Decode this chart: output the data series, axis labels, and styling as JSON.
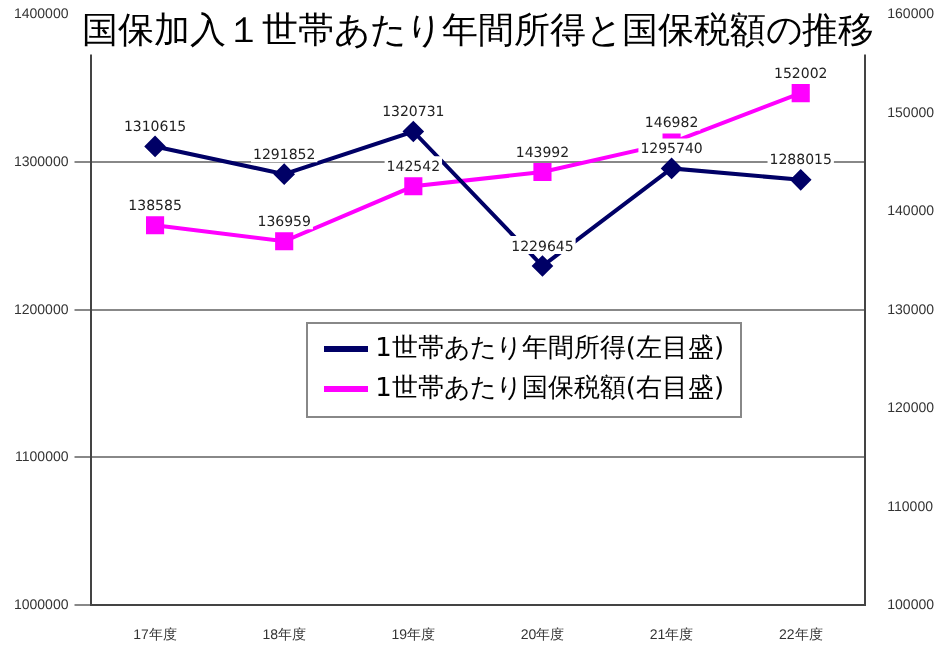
{
  "chart_data": {
    "type": "line",
    "title": "国保加入１世帯あたり年間所得と国保税額の推移",
    "categories": [
      "17年度",
      "18年度",
      "19年度",
      "20年度",
      "21年度",
      "22年度"
    ],
    "series": [
      {
        "name": "1世帯あたり年間所得(左目盛)",
        "color": "#000066",
        "marker": "diamond",
        "values": [
          1310615,
          1291852,
          1320731,
          1229645,
          1295740,
          1288015
        ]
      },
      {
        "name": "1世帯あたり国保税額(右目盛)",
        "color": "#ff00ff",
        "marker": "square",
        "axis": "y2",
        "values": [
          138585,
          136959,
          142542,
          143992,
          146982,
          152002
        ]
      }
    ],
    "ylim": [
      1000000,
      1400000
    ],
    "yticks": [
      1000000,
      1100000,
      1200000,
      1300000,
      1400000
    ],
    "y2lim": [
      100000,
      160000
    ],
    "y2ticks": [
      100000,
      110000,
      120000,
      130000,
      140000,
      150000,
      160000
    ],
    "grid": "y",
    "legend": "right",
    "data_labels": true
  }
}
